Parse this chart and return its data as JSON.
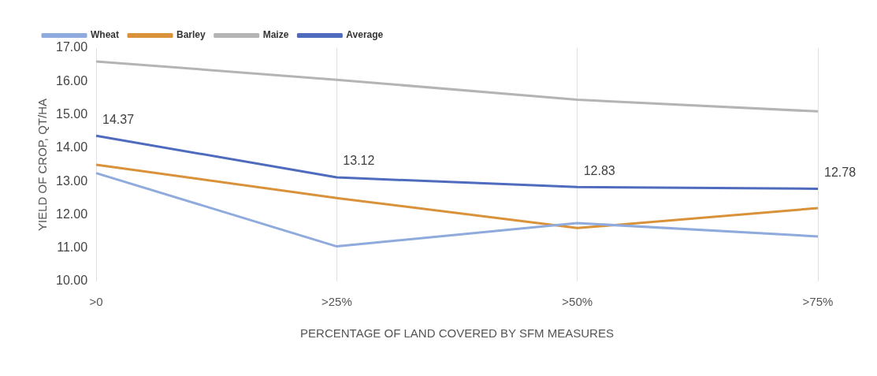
{
  "chart_data": {
    "type": "line",
    "xlabel": "PERCENTAGE OF LAND COVERED BY SFM MEASURES",
    "ylabel": "YIELD OF CROP, QT/HA",
    "categories": [
      ">0",
      ">25%",
      ">50%",
      ">75%"
    ],
    "series": [
      {
        "name": "Wheat",
        "color": "#8faadc",
        "values": [
          13.25,
          11.05,
          11.75,
          11.35
        ]
      },
      {
        "name": "Barley",
        "color": "#d9923a",
        "values": [
          13.5,
          12.5,
          11.6,
          12.2
        ]
      },
      {
        "name": "Maize",
        "color": "#b4b4b4",
        "values": [
          16.6,
          16.05,
          15.45,
          15.1
        ]
      },
      {
        "name": "Average",
        "color": "#4f6bbd",
        "values": [
          14.37,
          13.12,
          12.83,
          12.78
        ],
        "value_labels": [
          "14.37",
          "13.12",
          "12.83",
          "12.78"
        ]
      }
    ],
    "ylim": [
      10,
      17
    ],
    "yticks": [
      {
        "value": 10,
        "label": "10.00"
      },
      {
        "value": 11,
        "label": "11.00"
      },
      {
        "value": 12,
        "label": "12.00"
      },
      {
        "value": 13,
        "label": "13.00"
      },
      {
        "value": 14,
        "label": "14.00"
      },
      {
        "value": 15,
        "label": "15.00"
      },
      {
        "value": 16,
        "label": "16.00"
      },
      {
        "value": 17,
        "label": "17.00"
      }
    ],
    "grid": "x",
    "legend": "top",
    "marker": "none",
    "line_style": "solid"
  }
}
